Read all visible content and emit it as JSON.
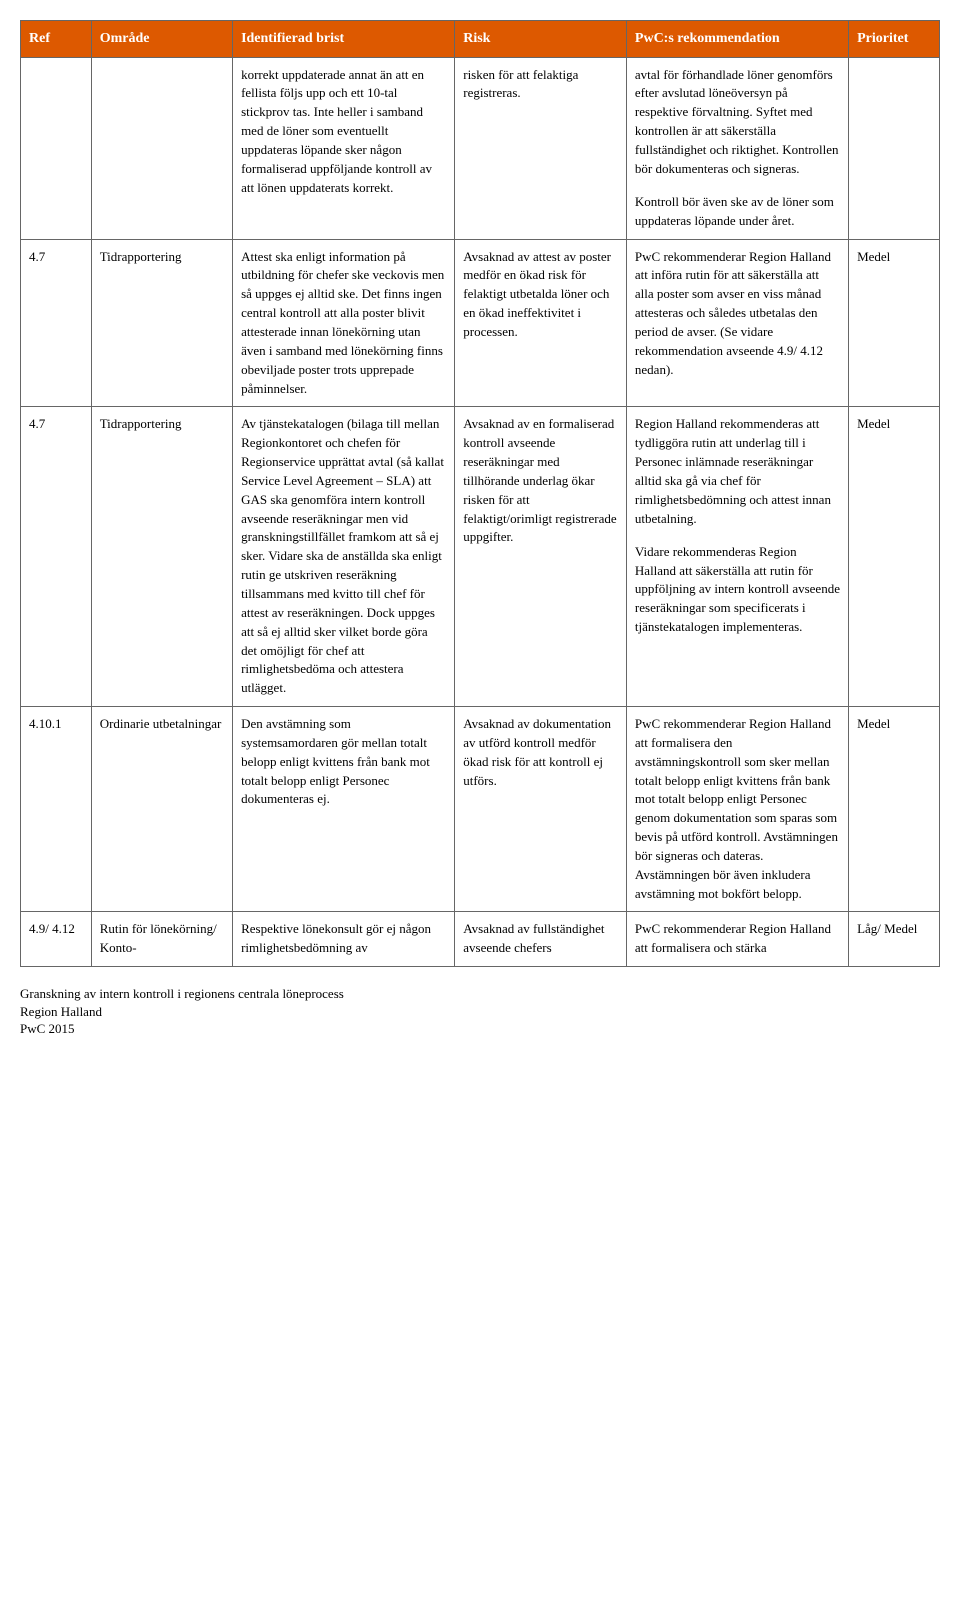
{
  "table": {
    "headers": {
      "ref": "Ref",
      "omrade": "Område",
      "brist": "Identifierad brist",
      "risk": "Risk",
      "rek": "PwC:s rekommendation",
      "prio": "Prioritet"
    },
    "rows": [
      {
        "ref": "",
        "omrade": "",
        "brist": "korrekt uppdaterade annat än att en fellista följs upp och ett 10-tal stickprov tas. Inte heller i samband med de löner som eventuellt uppdateras löpande sker någon formaliserad uppföljande kontroll av att lönen uppdaterats korrekt.",
        "risk": "risken för att felaktiga registreras.",
        "rek_p1": "avtal för förhandlade löner genomförs efter avslutad löneöversyn på respektive förvaltning. Syftet med kontrollen är att säkerställa fullständighet och riktighet. Kontrollen bör dokumenteras och signeras.",
        "rek_p2": "Kontroll bör även ske av de löner som uppdateras löpande under året.",
        "prio": ""
      },
      {
        "ref": "4.7",
        "omrade": "Tidrapportering",
        "brist": "Attest ska enligt information på utbildning för chefer ske veckovis men så uppges ej alltid ske. Det finns ingen central kontroll att alla poster blivit attesterade innan lönekörning utan även i samband med lönekörning finns obeviljade poster trots upprepade påminnelser.",
        "risk": "Avsaknad av attest av poster medför en ökad risk för felaktigt utbetalda löner och en ökad ineffektivitet i processen.",
        "rek": "PwC rekommenderar Region Halland att införa rutin för att säkerställa att alla poster som avser en viss månad attesteras och således utbetalas den period de avser. (Se vidare rekommendation avseende 4.9/ 4.12 nedan).",
        "prio": "Medel"
      },
      {
        "ref": "4.7",
        "omrade": "Tidrapportering",
        "brist": "Av tjänstekatalogen (bilaga till mellan Regionkontoret och chefen för Regionservice upprättat avtal (så kallat Service Level Agreement – SLA) att GAS ska genomföra intern kontroll avseende reseräkningar men vid granskningstillfället framkom att så ej sker. Vidare ska de anställda ska enligt rutin ge utskriven reseräkning tillsammans med kvitto till chef för attest av reseräkningen. Dock uppges att så ej alltid sker vilket borde göra det omöjligt för chef att rimlighetsbedöma och attestera utlägget.",
        "risk": "Avsaknad av en formaliserad kontroll avseende reseräkningar med tillhörande underlag ökar risken för att felaktigt/orimligt registrerade uppgifter.",
        "rek_p1": "Region Halland rekommenderas att tydliggöra rutin att underlag till i Personec inlämnade reseräkningar alltid ska gå via chef för rimlighetsbedömning och attest innan utbetalning.",
        "rek_p2": "Vidare rekommenderas Region Halland att säkerställa att rutin för uppföljning av intern kontroll avseende reseräkningar som specificerats i tjänstekatalogen implementeras.",
        "prio": "Medel"
      },
      {
        "ref": "4.10.1",
        "omrade": "Ordinarie utbetalningar",
        "brist": "Den avstämning som systemsamordaren gör mellan totalt belopp enligt kvittens från bank mot totalt belopp enligt Personec dokumenteras ej.",
        "risk": "Avsaknad av dokumentation av utförd kontroll medför ökad risk för att kontroll ej utförs.",
        "rek": "PwC rekommenderar Region Halland att formalisera den avstämningskontroll som sker mellan totalt belopp enligt kvittens från bank mot totalt belopp enligt Personec genom dokumentation som sparas som bevis på utförd kontroll. Avstämningen bör signeras och dateras. Avstämningen bör även inkludera avstämning mot bokfört belopp.",
        "prio": "Medel"
      },
      {
        "ref": "4.9/ 4.12",
        "omrade": "Rutin för lönekörning/ Konto-",
        "brist": "Respektive lönekonsult gör ej någon rimlighetsbedömning av",
        "risk": "Avsaknad av fullständighet avseende chefers",
        "rek": "PwC rekommenderar Region Halland att formalisera och stärka",
        "prio": "Låg/ Medel"
      }
    ]
  },
  "footer": {
    "line1": "Granskning av intern kontroll i regionens centrala löneprocess",
    "line2": "Region Halland",
    "line3": "PwC 2015"
  },
  "colors": {
    "header_bg": "#dd5900",
    "header_fg": "#ffffff",
    "border": "#666666"
  }
}
